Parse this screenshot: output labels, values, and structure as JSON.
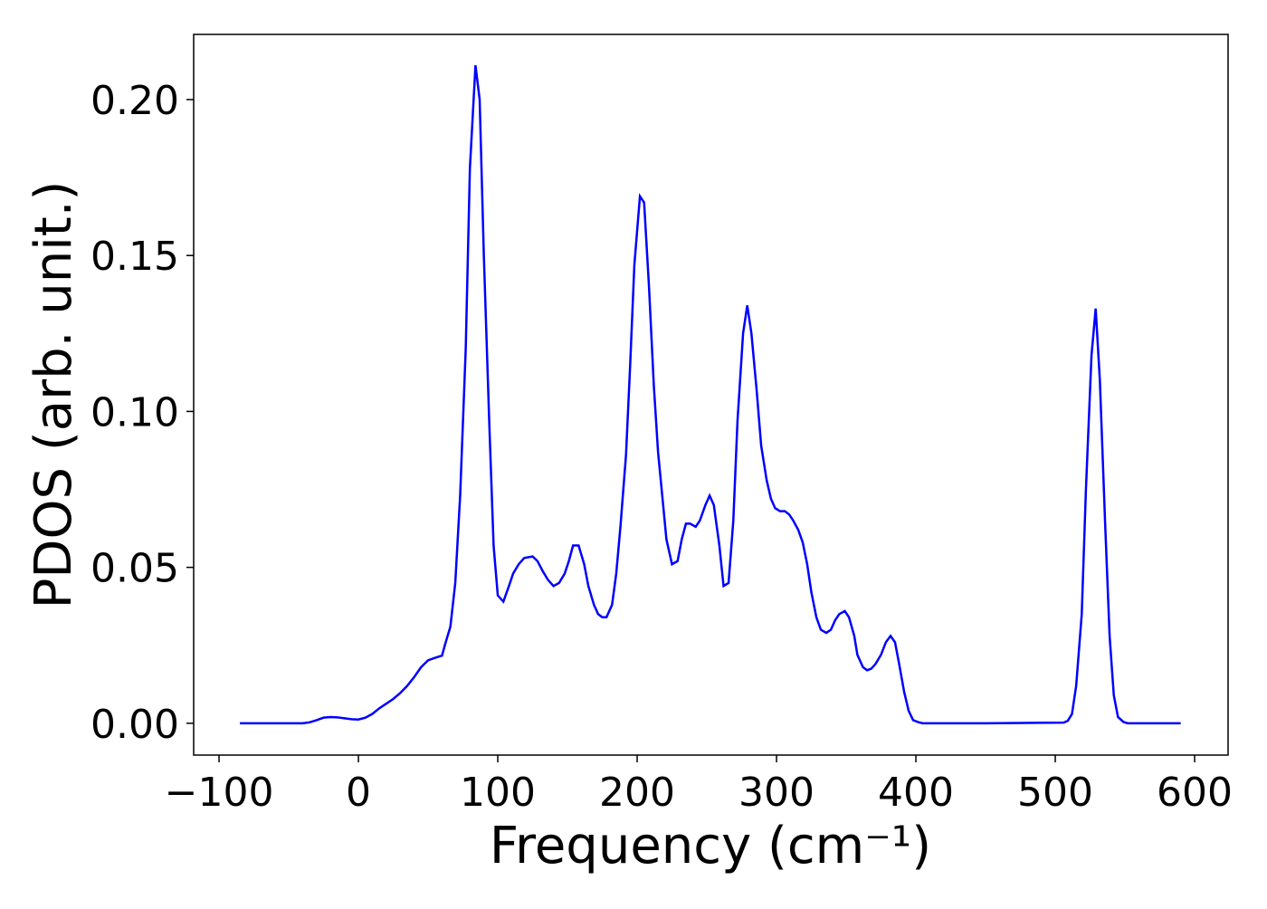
{
  "chart_data": {
    "type": "line",
    "xlabel": "Frequency (cm⁻¹)",
    "ylabel": "PDOS (arb. unit.)",
    "xlim": [
      -118.2,
      624
    ],
    "ylim": [
      -0.0102,
      0.2209
    ],
    "xticks": [
      {
        "value": -100,
        "label": "−100"
      },
      0,
      100,
      200,
      300,
      400,
      500,
      600
    ],
    "yticks": [
      {
        "value": 0,
        "label": "0.00"
      },
      {
        "value": 0.05,
        "label": "0.05"
      },
      {
        "value": 0.1,
        "label": "0.10"
      },
      {
        "value": 0.15,
        "label": "0.15"
      },
      {
        "value": 0.2,
        "label": "0.20"
      }
    ],
    "series": [
      {
        "color": "#0000ff",
        "x": [
          -85,
          -75,
          -65,
          -55,
          -45,
          -40,
          -35,
          -30,
          -25,
          -20,
          -15,
          -10,
          -5,
          0,
          5,
          10,
          15,
          20,
          25,
          30,
          35,
          40,
          45,
          50,
          55,
          60,
          62,
          66,
          69.5,
          73,
          77,
          80,
          84,
          87,
          90,
          94,
          97,
          100,
          104,
          108,
          111,
          115,
          119,
          125,
          128.5,
          132,
          136,
          140,
          144,
          148,
          151,
          154,
          158,
          162,
          165,
          169,
          172,
          175,
          178,
          182,
          185,
          188,
          192,
          195,
          198,
          202,
          205,
          208.5,
          212,
          215,
          218,
          221,
          225,
          229,
          232,
          235,
          238,
          242,
          245,
          249,
          252,
          255,
          259,
          262,
          265.6,
          269,
          272,
          276,
          279,
          282,
          285.7,
          289,
          292.9,
          296,
          299,
          302.6,
          306,
          309,
          312,
          315.6,
          318.8,
          322,
          325,
          328.6,
          331.8,
          335.7,
          339,
          342,
          345,
          349,
          352,
          355.8,
          358,
          362,
          365,
          368,
          371,
          375,
          378.5,
          381.8,
          385,
          388,
          391.6,
          394.8,
          398,
          402,
          405,
          450,
          506,
          509,
          512,
          515,
          519,
          522,
          526,
          529,
          532,
          535.7,
          539,
          542,
          545,
          549,
          552,
          570,
          590
        ],
        "values": [
          0,
          0,
          0,
          0,
          0,
          0,
          0.0003,
          0.001,
          0.0018,
          0.002,
          0.0019,
          0.0016,
          0.0013,
          0.0012,
          0.0018,
          0.003,
          0.0048,
          0.0063,
          0.0078,
          0.0097,
          0.012,
          0.0148,
          0.018,
          0.0202,
          0.021,
          0.0217,
          0.025,
          0.031,
          0.045,
          0.073,
          0.12,
          0.178,
          0.211,
          0.2,
          0.15,
          0.095,
          0.057,
          0.041,
          0.039,
          0.044,
          0.048,
          0.051,
          0.053,
          0.0535,
          0.052,
          0.049,
          0.046,
          0.044,
          0.045,
          0.048,
          0.052,
          0.057,
          0.057,
          0.051,
          0.044,
          0.038,
          0.035,
          0.034,
          0.034,
          0.038,
          0.048,
          0.063,
          0.086,
          0.115,
          0.147,
          0.169,
          0.167,
          0.14,
          0.108,
          0.087,
          0.073,
          0.059,
          0.051,
          0.052,
          0.059,
          0.064,
          0.064,
          0.063,
          0.065,
          0.07,
          0.073,
          0.07,
          0.057,
          0.044,
          0.045,
          0.065,
          0.097,
          0.125,
          0.134,
          0.125,
          0.107,
          0.089,
          0.078,
          0.072,
          0.069,
          0.068,
          0.068,
          0.067,
          0.065,
          0.062,
          0.058,
          0.051,
          0.042,
          0.034,
          0.03,
          0.029,
          0.03,
          0.033,
          0.035,
          0.036,
          0.034,
          0.028,
          0.022,
          0.018,
          0.017,
          0.0175,
          0.019,
          0.022,
          0.026,
          0.028,
          0.026,
          0.019,
          0.01,
          0.004,
          0.001,
          0.0003,
          0,
          0,
          0.0002,
          0.0008,
          0.003,
          0.012,
          0.035,
          0.075,
          0.118,
          0.133,
          0.11,
          0.065,
          0.028,
          0.009,
          0.002,
          0.0004,
          0,
          0,
          0
        ]
      }
    ]
  }
}
